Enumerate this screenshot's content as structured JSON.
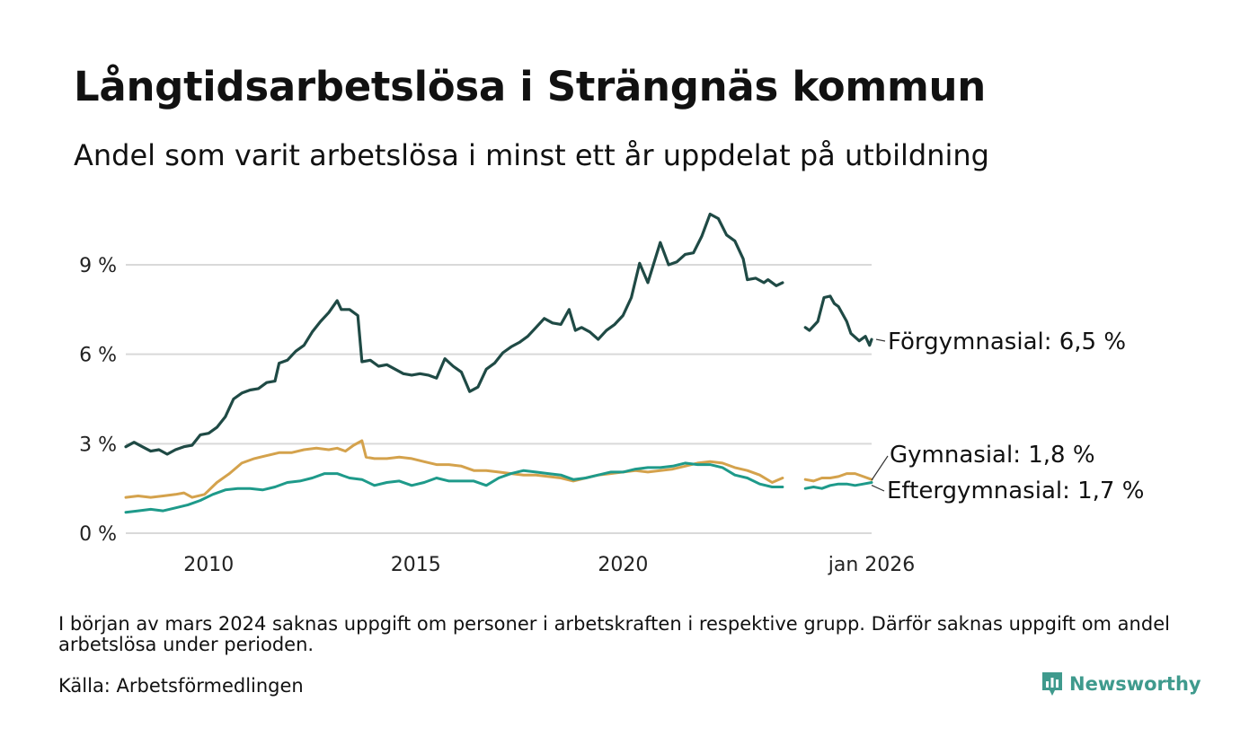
{
  "title": "Långtidsarbetslösa i Strängnäs kommun",
  "subtitle": "Andel som varit arbetslösa i minst ett år uppdelat på utbildning",
  "note": "I början av mars 2024 saknas uppgift om personer i arbetskraften i respektive grupp. Därför saknas uppgift om andel arbetslösa under perioden.",
  "source": "Källa: Arbetsförmedlingen",
  "brand": "Newsworthy",
  "colors": {
    "forgymnasial": "#1f4a45",
    "gymnasial": "#d4a24c",
    "eftergymnasial": "#1e9a8a",
    "grid": "#d9d9d9",
    "brand": "#3f9a8d"
  },
  "chart_data": {
    "type": "line",
    "title": "Långtidsarbetslösa i Strängnäs kommun",
    "xlabel": "",
    "ylabel": "",
    "ylim": [
      0,
      10.8
    ],
    "xlim": [
      2008.0,
      2026.0
    ],
    "yticks": [
      0,
      3,
      6,
      9
    ],
    "ytick_labels": [
      "0 %",
      "3 %",
      "6 %",
      "9 %"
    ],
    "xticks": [
      2010,
      2015,
      2020,
      2026
    ],
    "xtick_labels": [
      "2010",
      "2015",
      "2020",
      "jan 2026"
    ],
    "gap": [
      2024.0,
      2024.35
    ],
    "series": [
      {
        "name": "Förgymnasial",
        "label": "Förgymnasial: 6,5 %",
        "color_key": "forgymnasial",
        "points": [
          [
            2008.0,
            2.9
          ],
          [
            2008.2,
            3.05
          ],
          [
            2008.4,
            2.9
          ],
          [
            2008.6,
            2.75
          ],
          [
            2008.8,
            2.8
          ],
          [
            2009.0,
            2.65
          ],
          [
            2009.2,
            2.8
          ],
          [
            2009.4,
            2.9
          ],
          [
            2009.6,
            2.95
          ],
          [
            2009.8,
            3.3
          ],
          [
            2010.0,
            3.35
          ],
          [
            2010.2,
            3.55
          ],
          [
            2010.4,
            3.9
          ],
          [
            2010.6,
            4.5
          ],
          [
            2010.8,
            4.7
          ],
          [
            2011.0,
            4.8
          ],
          [
            2011.2,
            4.85
          ],
          [
            2011.4,
            5.05
          ],
          [
            2011.6,
            5.1
          ],
          [
            2011.7,
            5.7
          ],
          [
            2011.9,
            5.8
          ],
          [
            2012.1,
            6.1
          ],
          [
            2012.3,
            6.3
          ],
          [
            2012.5,
            6.75
          ],
          [
            2012.7,
            7.1
          ],
          [
            2012.9,
            7.4
          ],
          [
            2013.1,
            7.8
          ],
          [
            2013.2,
            7.5
          ],
          [
            2013.4,
            7.5
          ],
          [
            2013.6,
            7.3
          ],
          [
            2013.7,
            5.75
          ],
          [
            2013.9,
            5.8
          ],
          [
            2014.1,
            5.6
          ],
          [
            2014.3,
            5.65
          ],
          [
            2014.5,
            5.5
          ],
          [
            2014.7,
            5.35
          ],
          [
            2014.9,
            5.3
          ],
          [
            2015.1,
            5.35
          ],
          [
            2015.3,
            5.3
          ],
          [
            2015.5,
            5.2
          ],
          [
            2015.7,
            5.85
          ],
          [
            2015.9,
            5.6
          ],
          [
            2016.1,
            5.4
          ],
          [
            2016.3,
            4.75
          ],
          [
            2016.5,
            4.9
          ],
          [
            2016.7,
            5.5
          ],
          [
            2016.9,
            5.7
          ],
          [
            2017.1,
            6.05
          ],
          [
            2017.3,
            6.25
          ],
          [
            2017.5,
            6.4
          ],
          [
            2017.7,
            6.6
          ],
          [
            2017.9,
            6.9
          ],
          [
            2018.1,
            7.2
          ],
          [
            2018.3,
            7.05
          ],
          [
            2018.5,
            7.0
          ],
          [
            2018.7,
            7.5
          ],
          [
            2018.85,
            6.8
          ],
          [
            2019.0,
            6.9
          ],
          [
            2019.2,
            6.75
          ],
          [
            2019.4,
            6.5
          ],
          [
            2019.6,
            6.8
          ],
          [
            2019.8,
            7.0
          ],
          [
            2020.0,
            7.3
          ],
          [
            2020.2,
            7.9
          ],
          [
            2020.4,
            9.05
          ],
          [
            2020.6,
            8.4
          ],
          [
            2020.8,
            9.3
          ],
          [
            2020.9,
            9.75
          ],
          [
            2021.1,
            9.0
          ],
          [
            2021.3,
            9.1
          ],
          [
            2021.5,
            9.35
          ],
          [
            2021.7,
            9.4
          ],
          [
            2021.9,
            9.95
          ],
          [
            2022.1,
            10.7
          ],
          [
            2022.3,
            10.55
          ],
          [
            2022.5,
            10.0
          ],
          [
            2022.7,
            9.8
          ],
          [
            2022.9,
            9.2
          ],
          [
            2023.0,
            8.5
          ],
          [
            2023.2,
            8.55
          ],
          [
            2023.4,
            8.4
          ],
          [
            2023.5,
            8.5
          ],
          [
            2023.7,
            8.3
          ],
          [
            2023.85,
            8.4
          ]
        ],
        "points_after_gap": [
          [
            2024.4,
            6.9
          ],
          [
            2024.5,
            6.8
          ],
          [
            2024.7,
            7.1
          ],
          [
            2024.85,
            7.9
          ],
          [
            2025.0,
            7.95
          ],
          [
            2025.1,
            7.7
          ],
          [
            2025.2,
            7.6
          ],
          [
            2025.4,
            7.1
          ],
          [
            2025.5,
            6.7
          ],
          [
            2025.7,
            6.45
          ],
          [
            2025.85,
            6.6
          ],
          [
            2025.95,
            6.3
          ],
          [
            2026.0,
            6.5
          ]
        ]
      },
      {
        "name": "Gymnasial",
        "label": "Gymnasial: 1,8 %",
        "color_key": "gymnasial",
        "points": [
          [
            2008.0,
            1.2
          ],
          [
            2008.3,
            1.25
          ],
          [
            2008.6,
            1.2
          ],
          [
            2008.9,
            1.25
          ],
          [
            2009.2,
            1.3
          ],
          [
            2009.4,
            1.35
          ],
          [
            2009.6,
            1.2
          ],
          [
            2009.9,
            1.3
          ],
          [
            2010.2,
            1.7
          ],
          [
            2010.5,
            2.0
          ],
          [
            2010.8,
            2.35
          ],
          [
            2011.1,
            2.5
          ],
          [
            2011.4,
            2.6
          ],
          [
            2011.7,
            2.7
          ],
          [
            2012.0,
            2.7
          ],
          [
            2012.3,
            2.8
          ],
          [
            2012.6,
            2.85
          ],
          [
            2012.9,
            2.8
          ],
          [
            2013.1,
            2.85
          ],
          [
            2013.3,
            2.75
          ],
          [
            2013.5,
            2.95
          ],
          [
            2013.7,
            3.1
          ],
          [
            2013.8,
            2.55
          ],
          [
            2014.0,
            2.5
          ],
          [
            2014.3,
            2.5
          ],
          [
            2014.6,
            2.55
          ],
          [
            2014.9,
            2.5
          ],
          [
            2015.2,
            2.4
          ],
          [
            2015.5,
            2.3
          ],
          [
            2015.8,
            2.3
          ],
          [
            2016.1,
            2.25
          ],
          [
            2016.4,
            2.1
          ],
          [
            2016.7,
            2.1
          ],
          [
            2017.0,
            2.05
          ],
          [
            2017.3,
            2.0
          ],
          [
            2017.6,
            1.95
          ],
          [
            2017.9,
            1.95
          ],
          [
            2018.2,
            1.9
          ],
          [
            2018.5,
            1.85
          ],
          [
            2018.8,
            1.75
          ],
          [
            2019.1,
            1.85
          ],
          [
            2019.4,
            1.95
          ],
          [
            2019.7,
            2.0
          ],
          [
            2020.0,
            2.05
          ],
          [
            2020.3,
            2.1
          ],
          [
            2020.6,
            2.05
          ],
          [
            2020.9,
            2.1
          ],
          [
            2021.2,
            2.15
          ],
          [
            2021.5,
            2.25
          ],
          [
            2021.8,
            2.35
          ],
          [
            2022.1,
            2.4
          ],
          [
            2022.4,
            2.35
          ],
          [
            2022.7,
            2.2
          ],
          [
            2023.0,
            2.1
          ],
          [
            2023.3,
            1.95
          ],
          [
            2023.6,
            1.7
          ],
          [
            2023.85,
            1.85
          ]
        ],
        "points_after_gap": [
          [
            2024.4,
            1.8
          ],
          [
            2024.6,
            1.75
          ],
          [
            2024.8,
            1.85
          ],
          [
            2025.0,
            1.85
          ],
          [
            2025.2,
            1.9
          ],
          [
            2025.4,
            2.0
          ],
          [
            2025.6,
            2.0
          ],
          [
            2025.8,
            1.9
          ],
          [
            2026.0,
            1.8
          ]
        ]
      },
      {
        "name": "Eftergymnasial",
        "label": "Eftergymnasial: 1,7 %",
        "color_key": "eftergymnasial",
        "points": [
          [
            2008.0,
            0.7
          ],
          [
            2008.3,
            0.75
          ],
          [
            2008.6,
            0.8
          ],
          [
            2008.9,
            0.75
          ],
          [
            2009.2,
            0.85
          ],
          [
            2009.5,
            0.95
          ],
          [
            2009.8,
            1.1
          ],
          [
            2010.1,
            1.3
          ],
          [
            2010.4,
            1.45
          ],
          [
            2010.7,
            1.5
          ],
          [
            2011.0,
            1.5
          ],
          [
            2011.3,
            1.45
          ],
          [
            2011.6,
            1.55
          ],
          [
            2011.9,
            1.7
          ],
          [
            2012.2,
            1.75
          ],
          [
            2012.5,
            1.85
          ],
          [
            2012.8,
            2.0
          ],
          [
            2013.1,
            2.0
          ],
          [
            2013.4,
            1.85
          ],
          [
            2013.7,
            1.8
          ],
          [
            2014.0,
            1.6
          ],
          [
            2014.3,
            1.7
          ],
          [
            2014.6,
            1.75
          ],
          [
            2014.9,
            1.6
          ],
          [
            2015.2,
            1.7
          ],
          [
            2015.5,
            1.85
          ],
          [
            2015.8,
            1.75
          ],
          [
            2016.1,
            1.75
          ],
          [
            2016.4,
            1.75
          ],
          [
            2016.7,
            1.6
          ],
          [
            2017.0,
            1.85
          ],
          [
            2017.3,
            2.0
          ],
          [
            2017.6,
            2.1
          ],
          [
            2017.9,
            2.05
          ],
          [
            2018.2,
            2.0
          ],
          [
            2018.5,
            1.95
          ],
          [
            2018.8,
            1.8
          ],
          [
            2019.1,
            1.85
          ],
          [
            2019.4,
            1.95
          ],
          [
            2019.7,
            2.05
          ],
          [
            2020.0,
            2.05
          ],
          [
            2020.3,
            2.15
          ],
          [
            2020.6,
            2.2
          ],
          [
            2020.9,
            2.2
          ],
          [
            2021.2,
            2.25
          ],
          [
            2021.5,
            2.35
          ],
          [
            2021.8,
            2.3
          ],
          [
            2022.1,
            2.3
          ],
          [
            2022.4,
            2.2
          ],
          [
            2022.7,
            1.95
          ],
          [
            2023.0,
            1.85
          ],
          [
            2023.3,
            1.65
          ],
          [
            2023.6,
            1.55
          ],
          [
            2023.85,
            1.55
          ]
        ],
        "points_after_gap": [
          [
            2024.4,
            1.5
          ],
          [
            2024.6,
            1.55
          ],
          [
            2024.8,
            1.5
          ],
          [
            2025.0,
            1.6
          ],
          [
            2025.2,
            1.65
          ],
          [
            2025.4,
            1.65
          ],
          [
            2025.6,
            1.6
          ],
          [
            2025.8,
            1.65
          ],
          [
            2026.0,
            1.7
          ]
        ]
      }
    ]
  }
}
